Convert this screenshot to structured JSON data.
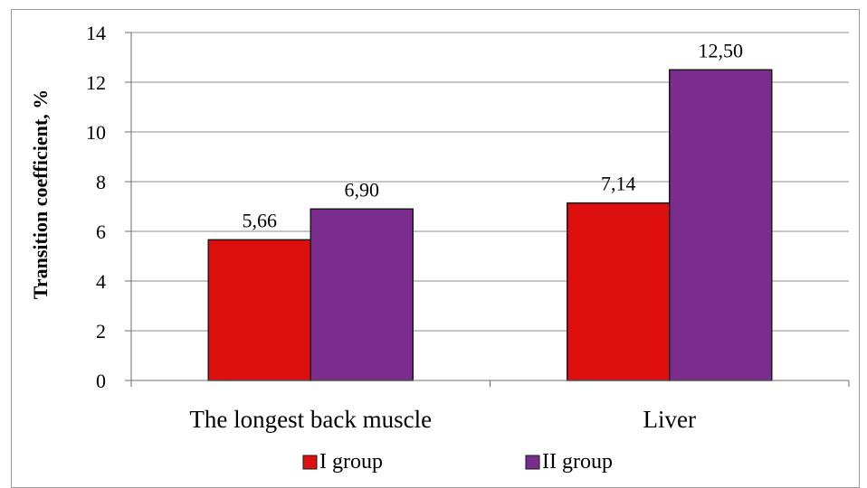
{
  "chart_data": {
    "type": "bar",
    "categories": [
      "The longest back muscle",
      "Liver"
    ],
    "series": [
      {
        "name": "I group",
        "values": [
          5.66,
          7.14
        ],
        "labels": [
          "5,66",
          "7,14"
        ],
        "color": "#dd0f0f"
      },
      {
        "name": "II group",
        "values": [
          6.9,
          12.5
        ],
        "labels": [
          "6,90",
          "12,50"
        ],
        "color": "#7b2d8e"
      }
    ],
    "title": "",
    "xlabel": "",
    "ylabel": "Transition coefficient, %",
    "ylim": [
      0,
      14
    ],
    "yticks": [
      0,
      2,
      4,
      6,
      8,
      10,
      12,
      14
    ],
    "grid": true,
    "legend": "bottom"
  }
}
